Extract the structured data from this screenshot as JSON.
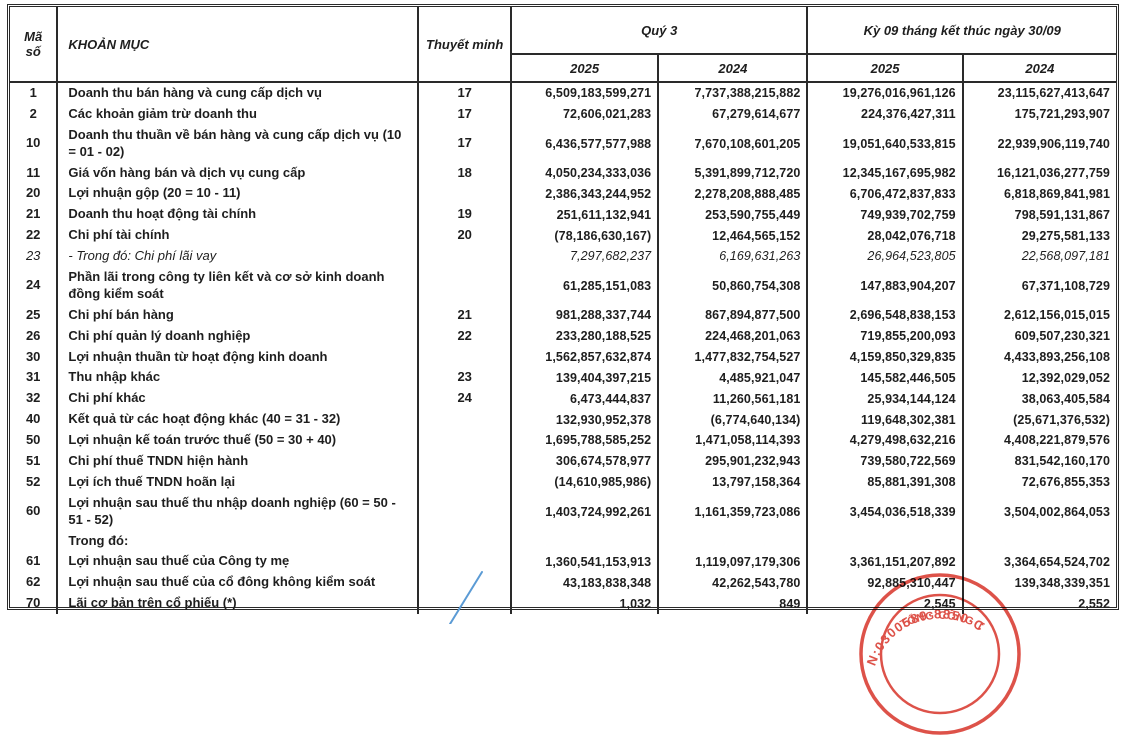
{
  "table": {
    "header": {
      "code": "Mã số",
      "item": "KHOẢN MỤC",
      "note": "Thuyết minh",
      "q3_group": "Quý 3",
      "ytd_group": "Kỳ 09 tháng kết thúc ngày 30/09",
      "year_2025": "2025",
      "year_2024": "2024"
    },
    "rows": [
      {
        "code": "1",
        "label": "Doanh thu bán hàng và cung cấp dịch vụ",
        "note": "17",
        "q3_2025": "6,509,183,599,271",
        "q3_2024": "7,737,388,215,882",
        "p9_2025": "19,276,016,961,126",
        "p9_2024": "23,115,627,413,647"
      },
      {
        "code": "2",
        "label": "Các khoản giảm trừ doanh thu",
        "note": "17",
        "q3_2025": "72,606,021,283",
        "q3_2024": "67,279,614,677",
        "p9_2025": "224,376,427,311",
        "p9_2024": "175,721,293,907"
      },
      {
        "code": "10",
        "label": "Doanh thu thuần về bán hàng và cung cấp dịch vụ (10 = 01 - 02)",
        "note": "17",
        "q3_2025": "6,436,577,577,988",
        "q3_2024": "7,670,108,601,205",
        "p9_2025": "19,051,640,533,815",
        "p9_2024": "22,939,906,119,740"
      },
      {
        "code": "11",
        "label": "Giá vốn hàng bán và dịch vụ cung cấp",
        "note": "18",
        "q3_2025": "4,050,234,333,036",
        "q3_2024": "5,391,899,712,720",
        "p9_2025": "12,345,167,695,982",
        "p9_2024": "16,121,036,277,759"
      },
      {
        "code": "20",
        "label": "Lợi nhuận gộp (20 = 10 - 11)",
        "note": "",
        "q3_2025": "2,386,343,244,952",
        "q3_2024": "2,278,208,888,485",
        "p9_2025": "6,706,472,837,833",
        "p9_2024": "6,818,869,841,981"
      },
      {
        "code": "21",
        "label": "Doanh thu hoạt động tài chính",
        "note": "19",
        "q3_2025": "251,611,132,941",
        "q3_2024": "253,590,755,449",
        "p9_2025": "749,939,702,759",
        "p9_2024": "798,591,131,867"
      },
      {
        "code": "22",
        "label": "Chi phí tài chính",
        "note": "20",
        "q3_2025": "(78,186,630,167)",
        "q3_2024": "12,464,565,152",
        "p9_2025": "28,042,076,718",
        "p9_2024": "29,275,581,133"
      },
      {
        "code": "23",
        "label": "- Trong đó: Chi phí lãi vay",
        "note": "",
        "q3_2025": "7,297,682,237",
        "q3_2024": "6,169,631,263",
        "p9_2025": "26,964,523,805",
        "p9_2024": "22,568,097,181",
        "italic": true
      },
      {
        "code": "24",
        "label": "Phần lãi trong công ty liên kết và cơ sở kinh doanh đồng kiểm soát",
        "note": "",
        "q3_2025": "61,285,151,083",
        "q3_2024": "50,860,754,308",
        "p9_2025": "147,883,904,207",
        "p9_2024": "67,371,108,729"
      },
      {
        "code": "25",
        "label": "Chi phí bán hàng",
        "note": "21",
        "q3_2025": "981,288,337,744",
        "q3_2024": "867,894,877,500",
        "p9_2025": "2,696,548,838,153",
        "p9_2024": "2,612,156,015,015"
      },
      {
        "code": "26",
        "label": "Chi phí quản lý doanh nghiệp",
        "note": "22",
        "q3_2025": "233,280,188,525",
        "q3_2024": "224,468,201,063",
        "p9_2025": "719,855,200,093",
        "p9_2024": "609,507,230,321"
      },
      {
        "code": "30",
        "label": "Lợi nhuận thuần từ hoạt động kinh doanh",
        "note": "",
        "q3_2025": "1,562,857,632,874",
        "q3_2024": "1,477,832,754,527",
        "p9_2025": "4,159,850,329,835",
        "p9_2024": "4,433,893,256,108"
      },
      {
        "code": "31",
        "label": "Thu nhập khác",
        "note": "23",
        "q3_2025": "139,404,397,215",
        "q3_2024": "4,485,921,047",
        "p9_2025": "145,582,446,505",
        "p9_2024": "12,392,029,052"
      },
      {
        "code": "32",
        "label": "Chi phí khác",
        "note": "24",
        "q3_2025": "6,473,444,837",
        "q3_2024": "11,260,561,181",
        "p9_2025": "25,934,144,124",
        "p9_2024": "38,063,405,584"
      },
      {
        "code": "40",
        "label": "Kết quả từ các hoạt động khác (40 = 31 - 32)",
        "note": "",
        "q3_2025": "132,930,952,378",
        "q3_2024": "(6,774,640,134)",
        "p9_2025": "119,648,302,381",
        "p9_2024": "(25,671,376,532)"
      },
      {
        "code": "50",
        "label": "Lợi nhuận kế toán trước thuế (50 = 30 + 40)",
        "note": "",
        "q3_2025": "1,695,788,585,252",
        "q3_2024": "1,471,058,114,393",
        "p9_2025": "4,279,498,632,216",
        "p9_2024": "4,408,221,879,576"
      },
      {
        "code": "51",
        "label": "Chi phí thuế TNDN hiện hành",
        "note": "",
        "q3_2025": "306,674,578,977",
        "q3_2024": "295,901,232,943",
        "p9_2025": "739,580,722,569",
        "p9_2024": "831,542,160,170"
      },
      {
        "code": "52",
        "label": "Lợi ích thuế TNDN hoãn lại",
        "note": "",
        "q3_2025": "(14,610,985,986)",
        "q3_2024": "13,797,158,364",
        "p9_2025": "85,881,391,308",
        "p9_2024": "72,676,855,353"
      },
      {
        "code": "60",
        "label": "Lợi nhuận sau thuế thu nhập doanh nghiệp (60 = 50 - 51 - 52)",
        "note": "",
        "q3_2025": "1,403,724,992,261",
        "q3_2024": "1,161,359,723,086",
        "p9_2025": "3,454,036,518,339",
        "p9_2024": "3,504,002,864,053"
      },
      {
        "code": "",
        "label": "Trong đó:",
        "note": "",
        "q3_2025": "",
        "q3_2024": "",
        "p9_2025": "",
        "p9_2024": ""
      },
      {
        "code": "61",
        "label": "Lợi nhuận sau thuế của Công ty mẹ",
        "note": "",
        "q3_2025": "1,360,541,153,913",
        "q3_2024": "1,119,097,179,306",
        "p9_2025": "3,361,151,207,892",
        "p9_2024": "3,364,654,524,702"
      },
      {
        "code": "62",
        "label": "Lợi nhuận sau thuế của cổ đông không kiểm soát",
        "note": "",
        "q3_2025": "43,183,838,348",
        "q3_2024": "42,262,543,780",
        "p9_2025": "92,885,310,447",
        "p9_2024": "139,348,339,351"
      },
      {
        "code": "70",
        "label": "Lãi cơ bản trên cổ phiếu (*)",
        "note": "",
        "q3_2025": "1,032",
        "q3_2024": "849",
        "p9_2025": "2,545",
        "p9_2024": "2,552"
      }
    ]
  },
  "stamp": {
    "arc_text": "N:0300589·8850·C",
    "inner_text": "TỔNG CÔNG TY",
    "color": "#d93a30"
  },
  "annotations": {
    "pen_color": "#5b9bd5"
  }
}
